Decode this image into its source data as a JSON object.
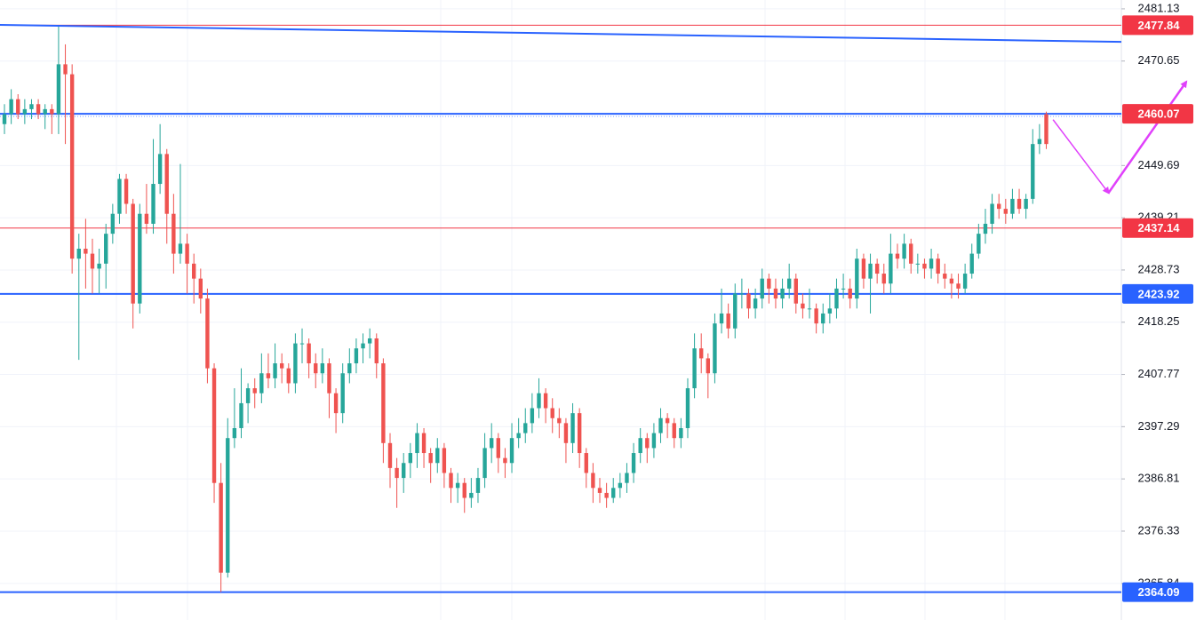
{
  "chart_data": {
    "type": "candlestick",
    "xlim": [
      -0.66,
      165.1
    ],
    "ylim": [
      2358.5,
      2482.9
    ],
    "yticks": [
      2481.13,
      2470.65,
      2449.69,
      2439.21,
      2428.73,
      2418.25,
      2407.77,
      2397.29,
      2386.81,
      2376.33,
      2365.84
    ],
    "grid": true,
    "up_color": "#26a69a",
    "down_color": "#ef5350",
    "ohlc": [
      [
        2458,
        2462,
        2456,
        2460
      ],
      [
        2460,
        2465,
        2458,
        2463
      ],
      [
        2463,
        2464,
        2459,
        2460
      ],
      [
        2460,
        2463,
        2458,
        2461
      ],
      [
        2461,
        2463,
        2459,
        2462
      ],
      [
        2462,
        2463,
        2459,
        2460
      ],
      [
        2460,
        2462,
        2457,
        2461
      ],
      [
        2461,
        2462,
        2456,
        2460
      ],
      [
        2460,
        2477.6,
        2456,
        2470
      ],
      [
        2470,
        2474,
        2454,
        2468
      ],
      [
        2468,
        2470,
        2428,
        2431
      ],
      [
        2431,
        2436,
        2410.7,
        2433
      ],
      [
        2433,
        2439,
        2425,
        2432
      ],
      [
        2432,
        2435,
        2424,
        2429
      ],
      [
        2429,
        2433,
        2424,
        2430
      ],
      [
        2430,
        2438,
        2425,
        2436
      ],
      [
        2436,
        2442,
        2434,
        2440
      ],
      [
        2440,
        2448,
        2438,
        2447
      ],
      [
        2447,
        2448,
        2440,
        2442
      ],
      [
        2442,
        2443,
        2417,
        2422
      ],
      [
        2422,
        2442,
        2420,
        2440
      ],
      [
        2440,
        2446,
        2436,
        2438
      ],
      [
        2438,
        2455,
        2436,
        2446
      ],
      [
        2446,
        2458,
        2444,
        2452
      ],
      [
        2452,
        2453,
        2434,
        2440
      ],
      [
        2440,
        2444,
        2428,
        2432
      ],
      [
        2432,
        2450,
        2430,
        2434
      ],
      [
        2434,
        2436,
        2424,
        2430
      ],
      [
        2430,
        2432,
        2422,
        2427
      ],
      [
        2427,
        2429,
        2420,
        2423
      ],
      [
        2423,
        2425,
        2406,
        2409
      ],
      [
        2409,
        2410,
        2382,
        2386
      ],
      [
        2386,
        2390,
        2364.1,
        2368
      ],
      [
        2368,
        2399,
        2367,
        2395
      ],
      [
        2395,
        2405,
        2393,
        2397
      ],
      [
        2397,
        2409,
        2395,
        2402
      ],
      [
        2402,
        2406,
        2398,
        2405
      ],
      [
        2405,
        2407,
        2401,
        2404
      ],
      [
        2404,
        2412,
        2402,
        2408
      ],
      [
        2408,
        2412,
        2405,
        2407
      ],
      [
        2407,
        2414,
        2405,
        2410
      ],
      [
        2410,
        2412,
        2406,
        2409
      ],
      [
        2409,
        2410,
        2404,
        2406
      ],
      [
        2406,
        2416,
        2404,
        2414
      ],
      [
        2414,
        2417,
        2410,
        2414
      ],
      [
        2414,
        2415,
        2407,
        2410
      ],
      [
        2410,
        2412,
        2405,
        2408
      ],
      [
        2408,
        2413,
        2406,
        2410
      ],
      [
        2410,
        2411,
        2399,
        2404
      ],
      [
        2404,
        2405,
        2396,
        2400
      ],
      [
        2400,
        2410,
        2398,
        2408
      ],
      [
        2408,
        2413,
        2406,
        2410
      ],
      [
        2410,
        2415,
        2408,
        2413
      ],
      [
        2413,
        2416,
        2410,
        2414
      ],
      [
        2414,
        2417,
        2411,
        2415
      ],
      [
        2415,
        2416,
        2407,
        2410
      ],
      [
        2410,
        2411,
        2390,
        2394
      ],
      [
        2394,
        2396,
        2385,
        2389
      ],
      [
        2389,
        2391,
        2381,
        2387
      ],
      [
        2387,
        2392,
        2384,
        2390
      ],
      [
        2390,
        2394,
        2387,
        2392
      ],
      [
        2392,
        2398,
        2389,
        2396
      ],
      [
        2396,
        2397,
        2389,
        2392
      ],
      [
        2392,
        2393,
        2386,
        2390
      ],
      [
        2390,
        2395,
        2388,
        2393
      ],
      [
        2393,
        2394,
        2385,
        2388
      ],
      [
        2388,
        2389,
        2382,
        2385
      ],
      [
        2385,
        2388,
        2382,
        2386
      ],
      [
        2386,
        2387,
        2380,
        2383
      ],
      [
        2383,
        2387,
        2381,
        2384
      ],
      [
        2384,
        2389,
        2382,
        2387
      ],
      [
        2387,
        2396,
        2385,
        2393
      ],
      [
        2393,
        2398,
        2390,
        2395
      ],
      [
        2395,
        2396,
        2388,
        2391
      ],
      [
        2391,
        2393,
        2387,
        2390
      ],
      [
        2390,
        2398,
        2388,
        2395
      ],
      [
        2395,
        2399,
        2393,
        2396
      ],
      [
        2396,
        2401,
        2394,
        2398
      ],
      [
        2398,
        2404,
        2396,
        2401
      ],
      [
        2401,
        2407,
        2399,
        2404
      ],
      [
        2404,
        2405,
        2398,
        2401
      ],
      [
        2401,
        2403,
        2396,
        2399
      ],
      [
        2399,
        2401,
        2395,
        2398
      ],
      [
        2398,
        2399,
        2390,
        2394
      ],
      [
        2394,
        2402,
        2392,
        2400
      ],
      [
        2400,
        2401,
        2389,
        2392
      ],
      [
        2392,
        2393,
        2385,
        2388
      ],
      [
        2388,
        2390,
        2382,
        2385
      ],
      [
        2385,
        2387,
        2382,
        2384
      ],
      [
        2384,
        2386,
        2381,
        2383
      ],
      [
        2383,
        2387,
        2382,
        2385
      ],
      [
        2385,
        2388,
        2383,
        2386
      ],
      [
        2386,
        2390,
        2384,
        2388
      ],
      [
        2388,
        2394,
        2386,
        2392
      ],
      [
        2392,
        2397,
        2390,
        2395
      ],
      [
        2395,
        2396,
        2390,
        2393
      ],
      [
        2393,
        2398,
        2391,
        2396
      ],
      [
        2396,
        2401,
        2394,
        2399
      ],
      [
        2399,
        2400,
        2395,
        2398
      ],
      [
        2398,
        2399,
        2393,
        2395
      ],
      [
        2395,
        2399,
        2393,
        2397
      ],
      [
        2397,
        2407,
        2395,
        2405
      ],
      [
        2405,
        2416,
        2403,
        2413
      ],
      [
        2413,
        2416,
        2408,
        2411
      ],
      [
        2411,
        2412,
        2403,
        2408
      ],
      [
        2408,
        2420,
        2406,
        2418
      ],
      [
        2418,
        2425,
        2416,
        2420
      ],
      [
        2420,
        2422,
        2415,
        2417
      ],
      [
        2417,
        2426,
        2415,
        2424
      ],
      [
        2424,
        2427,
        2421,
        2424
      ],
      [
        2424,
        2425,
        2419,
        2421
      ],
      [
        2421,
        2425,
        2419,
        2423
      ],
      [
        2423,
        2429,
        2421,
        2427
      ],
      [
        2427,
        2428,
        2422,
        2425
      ],
      [
        2425,
        2427,
        2421,
        2423
      ],
      [
        2423,
        2427,
        2421,
        2425
      ],
      [
        2425,
        2430,
        2423,
        2427
      ],
      [
        2427,
        2428,
        2420,
        2422
      ],
      [
        2422,
        2424,
        2419,
        2421
      ],
      [
        2421,
        2425,
        2419,
        2421
      ],
      [
        2421,
        2422,
        2416,
        2418
      ],
      [
        2418,
        2422,
        2416,
        2420
      ],
      [
        2420,
        2424,
        2418,
        2421
      ],
      [
        2421,
        2427,
        2419,
        2425
      ],
      [
        2425,
        2428,
        2423,
        2425
      ],
      [
        2425,
        2427,
        2421,
        2423
      ],
      [
        2423,
        2433,
        2421,
        2431
      ],
      [
        2431,
        2432,
        2425,
        2427
      ],
      [
        2427,
        2432,
        2420,
        2430
      ],
      [
        2430,
        2431,
        2426,
        2428
      ],
      [
        2428,
        2430,
        2424,
        2426
      ],
      [
        2426,
        2436,
        2424,
        2432
      ],
      [
        2432,
        2434,
        2429,
        2431
      ],
      [
        2431,
        2436,
        2429,
        2434
      ],
      [
        2434,
        2435,
        2428,
        2430
      ],
      [
        2430,
        2432,
        2428,
        2430
      ],
      [
        2430,
        2431,
        2427,
        2429
      ],
      [
        2429,
        2433,
        2427,
        2431
      ],
      [
        2431,
        2432,
        2426,
        2428
      ],
      [
        2428,
        2430,
        2425,
        2427
      ],
      [
        2427,
        2428,
        2423,
        2426
      ],
      [
        2426,
        2428,
        2423,
        2425
      ],
      [
        2425,
        2430,
        2424,
        2428
      ],
      [
        2428,
        2434,
        2427,
        2432
      ],
      [
        2432,
        2438,
        2431,
        2436
      ],
      [
        2436,
        2441,
        2434,
        2438
      ],
      [
        2438,
        2444,
        2436,
        2442
      ],
      [
        2442,
        2444,
        2439,
        2441
      ],
      [
        2441,
        2443,
        2438,
        2440
      ],
      [
        2440,
        2445,
        2439,
        2443
      ],
      [
        2443,
        2445,
        2440,
        2441
      ],
      [
        2441,
        2444,
        2439,
        2443
      ],
      [
        2443,
        2457,
        2442,
        2454
      ],
      [
        2454,
        2458,
        2452,
        2455
      ],
      [
        2460,
        2460.5,
        2453,
        2454
      ]
    ],
    "price_lines": [
      {
        "value": 2477.84,
        "color": "#f23645",
        "width": 1
      },
      {
        "value": 2460.07,
        "color": "#2962ff",
        "width": 2,
        "label_color": "#f23645"
      },
      {
        "value": 2437.14,
        "color": "#f23645",
        "width": 1
      },
      {
        "value": 2423.92,
        "color": "#2962ff",
        "width": 2
      },
      {
        "value": 2364.09,
        "color": "#2962ff",
        "width": 2
      }
    ],
    "trendline": {
      "start": [
        -0.66,
        2477.9
      ],
      "end": [
        165.1,
        2474.5
      ],
      "color": "#2962ff"
    },
    "projection": {
      "points": [
        [
          155,
          2458.9
        ],
        [
          163.2,
          2444.2
        ],
        [
          174.7,
          2466.5
        ]
      ],
      "color": "#e040fb"
    }
  }
}
